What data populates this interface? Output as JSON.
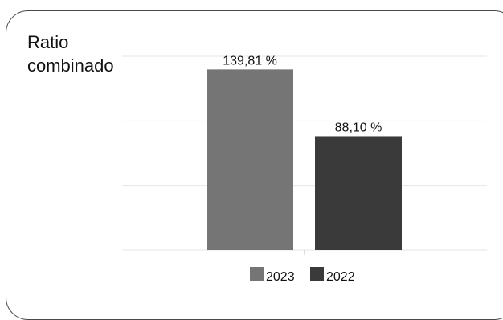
{
  "title_line1": "Ratio",
  "title_line2": "combinado",
  "colors": {
    "2023": "#757575",
    "2022": "#3a3a3a",
    "grid": "#e6e6e6"
  },
  "chart_data": {
    "type": "bar",
    "title": "Ratio combinado",
    "categories": [
      ""
    ],
    "series": [
      {
        "name": "2023",
        "values": [
          139.81
        ],
        "label": "139,81 %"
      },
      {
        "name": "2022",
        "values": [
          88.1
        ],
        "label": "88,10 %"
      }
    ],
    "ylim": [
      0,
      150
    ],
    "grid": true,
    "legend": "bottom-center"
  }
}
